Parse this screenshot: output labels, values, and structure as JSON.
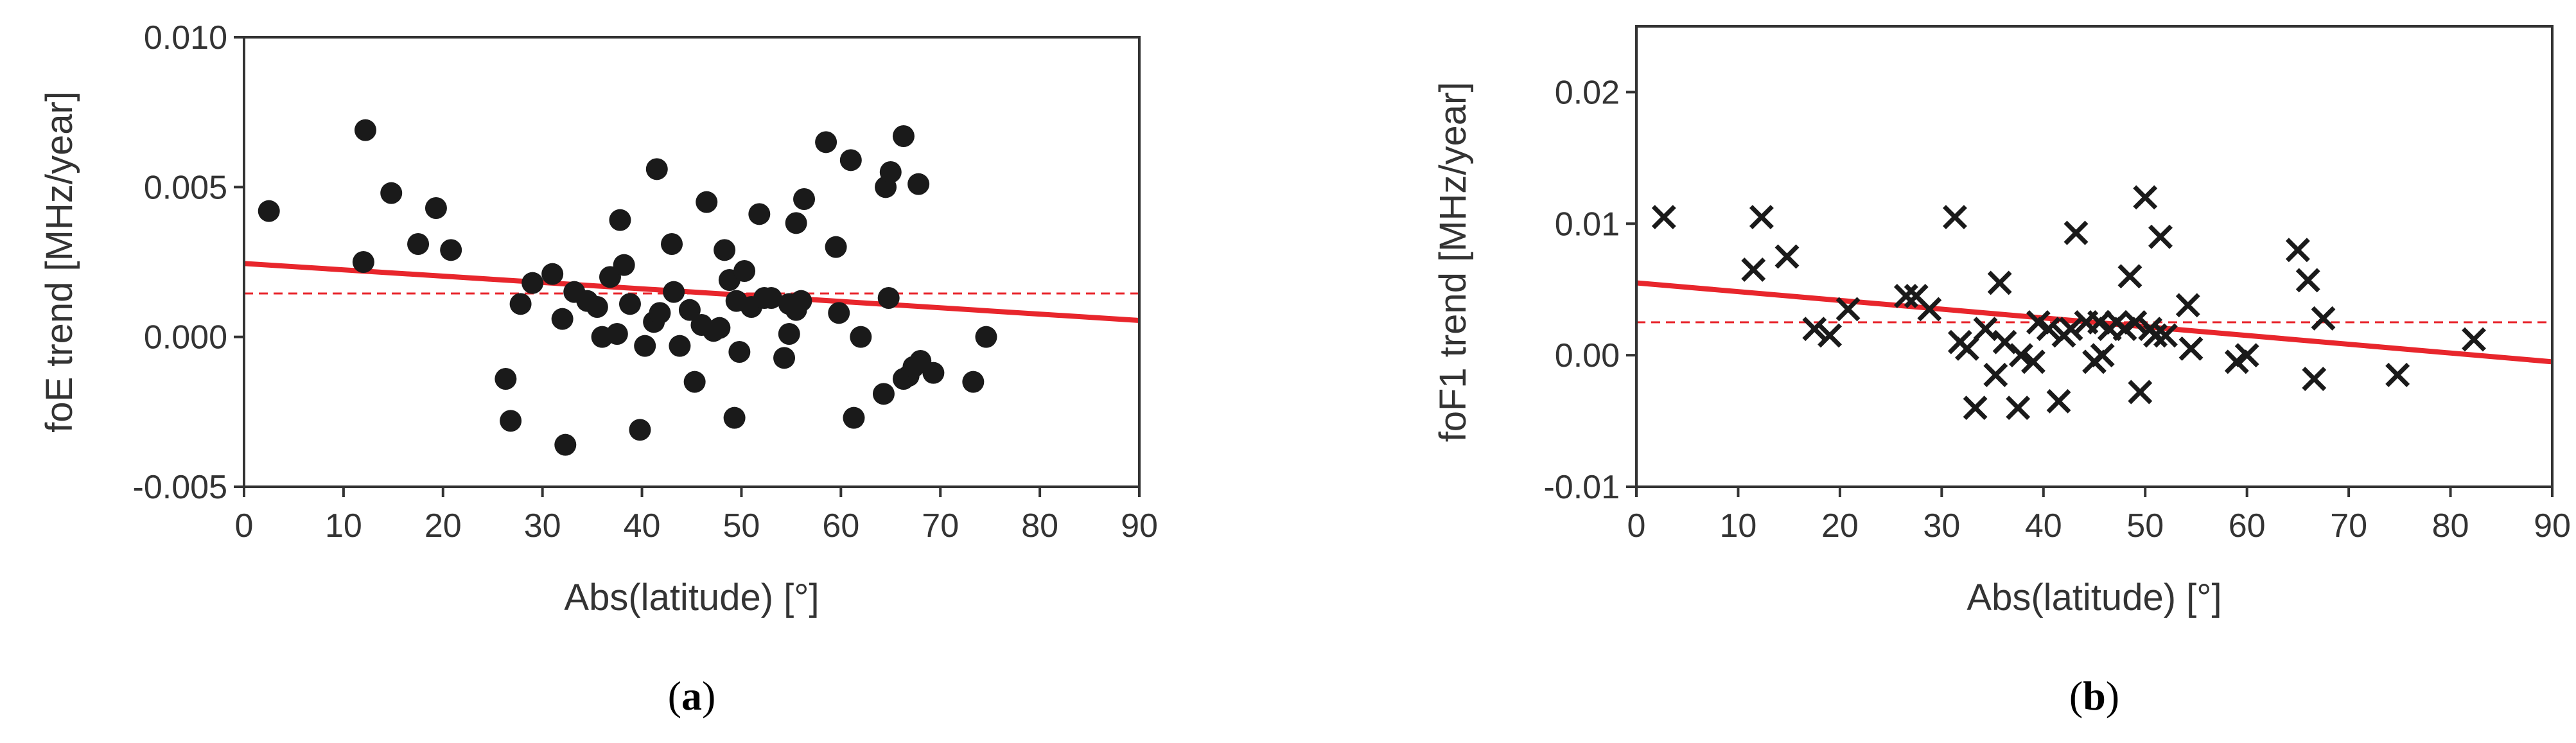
{
  "chart_data": [
    {
      "type": "scatter",
      "marker": "filled-circle",
      "xlabel": "Abs(latitude) [°]",
      "ylabel": "foE trend [MHz/year]",
      "xlim": [
        0,
        90
      ],
      "ylim": [
        -0.005,
        0.01
      ],
      "xticks": [
        0,
        10,
        20,
        30,
        40,
        50,
        60,
        70,
        80,
        90
      ],
      "xtick_labels": [
        "0",
        "10",
        "20",
        "30",
        "40",
        "50",
        "60",
        "70",
        "80",
        "90"
      ],
      "yticks": [
        -0.005,
        0.0,
        0.005,
        0.01
      ],
      "ytick_labels": [
        "-0.005",
        "0.000",
        "0.005",
        "0.010"
      ],
      "grid": false,
      "colors": {
        "points": "#1a1a1a",
        "fit": "#e8262c",
        "mean": "#e8262c"
      },
      "trend_line": {
        "x": [
          0,
          90
        ],
        "y": [
          0.00245,
          0.00055
        ]
      },
      "mean_line": {
        "y": 0.00145
      },
      "caption": {
        "open": "(",
        "letter": "a",
        "close": ")"
      },
      "points": [
        [
          2.5,
          0.0042
        ],
        [
          12.2,
          0.0069
        ],
        [
          12.0,
          0.0025
        ],
        [
          14.8,
          0.0048
        ],
        [
          17.5,
          0.0031
        ],
        [
          19.3,
          0.0043
        ],
        [
          20.8,
          0.0029
        ],
        [
          26.3,
          -0.0014
        ],
        [
          26.8,
          -0.0028
        ],
        [
          27.8,
          0.0011
        ],
        [
          29.0,
          0.0018
        ],
        [
          31.0,
          0.0021
        ],
        [
          32.0,
          0.0006
        ],
        [
          32.3,
          -0.0036
        ],
        [
          33.2,
          0.0015
        ],
        [
          34.5,
          0.0012
        ],
        [
          35.5,
          0.001
        ],
        [
          36.0,
          0.0
        ],
        [
          36.8,
          0.002
        ],
        [
          37.8,
          0.0039
        ],
        [
          37.5,
          0.0001
        ],
        [
          38.2,
          0.0024
        ],
        [
          38.8,
          0.0011
        ],
        [
          39.8,
          -0.0031
        ],
        [
          40.3,
          -0.0003
        ],
        [
          41.2,
          0.0005
        ],
        [
          41.5,
          0.0056
        ],
        [
          41.8,
          0.0008
        ],
        [
          43.0,
          0.0031
        ],
        [
          43.2,
          0.0015
        ],
        [
          43.8,
          -0.0003
        ],
        [
          44.8,
          0.0009
        ],
        [
          45.3,
          -0.0015
        ],
        [
          46.0,
          0.0004
        ],
        [
          46.5,
          0.0045
        ],
        [
          47.2,
          0.0002
        ],
        [
          47.8,
          0.0003
        ],
        [
          48.3,
          0.0029
        ],
        [
          48.8,
          0.0019
        ],
        [
          49.3,
          -0.0027
        ],
        [
          49.5,
          0.0012
        ],
        [
          49.8,
          -0.0005
        ],
        [
          50.3,
          0.0022
        ],
        [
          51.0,
          0.001
        ],
        [
          51.8,
          0.0041
        ],
        [
          52.3,
          0.0013
        ],
        [
          53.0,
          0.0013
        ],
        [
          54.3,
          -0.0007
        ],
        [
          54.8,
          0.0001
        ],
        [
          54.8,
          0.0011
        ],
        [
          55.5,
          0.0038
        ],
        [
          55.5,
          0.0009
        ],
        [
          56.0,
          0.0012
        ],
        [
          56.3,
          0.0046
        ],
        [
          58.5,
          0.0065
        ],
        [
          59.5,
          0.003
        ],
        [
          59.8,
          0.0008
        ],
        [
          61.0,
          0.0059
        ],
        [
          61.3,
          -0.0027
        ],
        [
          62.0,
          0.0
        ],
        [
          64.3,
          -0.0019
        ],
        [
          64.5,
          0.005
        ],
        [
          64.8,
          0.0013
        ],
        [
          65.0,
          0.0055
        ],
        [
          66.3,
          0.0067
        ],
        [
          66.8,
          -0.0013
        ],
        [
          66.3,
          -0.0014
        ],
        [
          67.3,
          -0.001
        ],
        [
          67.8,
          0.0051
        ],
        [
          68.0,
          -0.0008
        ],
        [
          69.3,
          -0.0012
        ],
        [
          73.3,
          -0.0015
        ],
        [
          74.6,
          0.0
        ]
      ]
    },
    {
      "type": "scatter",
      "marker": "x",
      "xlabel": "Abs(latitude) [°]",
      "ylabel": "foF1 trend [MHz/year]",
      "xlim": [
        0,
        90
      ],
      "ylim": [
        -0.01,
        0.025
      ],
      "xticks": [
        0,
        10,
        20,
        30,
        40,
        50,
        60,
        70,
        80,
        90
      ],
      "xtick_labels": [
        "0",
        "10",
        "20",
        "30",
        "40",
        "50",
        "60",
        "70",
        "80",
        "90"
      ],
      "yticks": [
        -0.01,
        0.0,
        0.01,
        0.02
      ],
      "ytick_labels": [
        "-0.01",
        "0.00",
        "0.01",
        "0.02"
      ],
      "grid": false,
      "colors": {
        "points": "#1a1a1a",
        "fit": "#e8262c",
        "mean": "#e8262c"
      },
      "trend_line": {
        "x": [
          0,
          90
        ],
        "y": [
          0.0055,
          -0.0005
        ]
      },
      "mean_line": {
        "y": 0.0025
      },
      "caption": {
        "open": "(",
        "letter": "b",
        "close": ")"
      },
      "points": [
        [
          2.7,
          0.0105
        ],
        [
          11.5,
          0.0065
        ],
        [
          12.3,
          0.0105
        ],
        [
          14.8,
          0.0075
        ],
        [
          17.5,
          0.002
        ],
        [
          19.0,
          0.0015
        ],
        [
          20.8,
          0.0035
        ],
        [
          26.5,
          0.0045
        ],
        [
          27.5,
          0.0045
        ],
        [
          28.8,
          0.0035
        ],
        [
          31.3,
          0.0105
        ],
        [
          31.8,
          0.001
        ],
        [
          32.5,
          0.0005
        ],
        [
          33.3,
          -0.004
        ],
        [
          34.3,
          0.002
        ],
        [
          35.3,
          -0.0015
        ],
        [
          35.7,
          0.0055
        ],
        [
          36.2,
          0.001
        ],
        [
          37.5,
          -0.004
        ],
        [
          37.8,
          0.0
        ],
        [
          39.0,
          -0.0005
        ],
        [
          39.5,
          0.0025
        ],
        [
          40.5,
          0.002
        ],
        [
          41.5,
          -0.0035
        ],
        [
          42.0,
          0.0015
        ],
        [
          42.7,
          0.002
        ],
        [
          43.2,
          0.0093
        ],
        [
          44.2,
          0.0025
        ],
        [
          45.0,
          -0.0005
        ],
        [
          45.5,
          0.0025
        ],
        [
          45.8,
          0.0
        ],
        [
          46.5,
          0.002
        ],
        [
          47.2,
          0.0025
        ],
        [
          48.0,
          0.002
        ],
        [
          48.5,
          0.006
        ],
        [
          49.0,
          0.0025
        ],
        [
          49.5,
          -0.0028
        ],
        [
          50.0,
          0.012
        ],
        [
          50.5,
          0.002
        ],
        [
          51.0,
          0.0015
        ],
        [
          51.5,
          0.009
        ],
        [
          52.0,
          0.0015
        ],
        [
          54.2,
          0.0038
        ],
        [
          54.5,
          0.0005
        ],
        [
          59.0,
          -0.0005
        ],
        [
          60.0,
          0.0
        ],
        [
          65.0,
          0.008
        ],
        [
          66.0,
          0.0057
        ],
        [
          66.6,
          -0.0018
        ],
        [
          67.5,
          0.0028
        ],
        [
          74.8,
          -0.0015
        ],
        [
          82.3,
          0.0012
        ]
      ]
    }
  ]
}
